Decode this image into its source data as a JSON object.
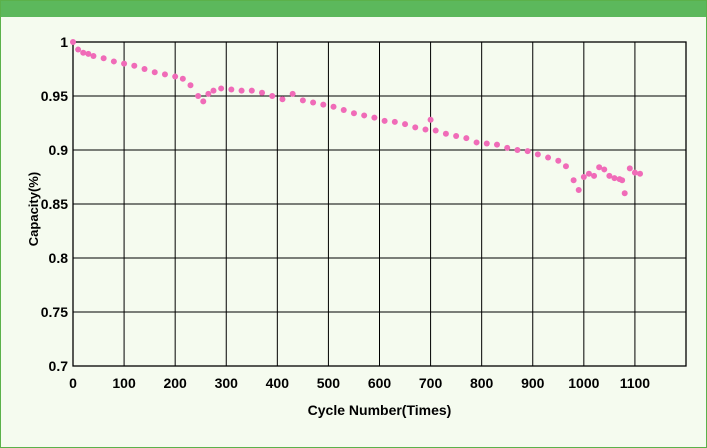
{
  "chart_data": {
    "type": "scatter",
    "title": "",
    "xlabel": "Cycle Number(Times)",
    "ylabel": "Capacity(%)",
    "xlim": [
      0,
      1200
    ],
    "ylim": [
      0.7,
      1.0
    ],
    "x_ticks": [
      "0",
      "100",
      "200",
      "300",
      "400",
      "500",
      "600",
      "700",
      "800",
      "900",
      "1000",
      "1100"
    ],
    "y_ticks": [
      "0.7",
      "0.75",
      "0.8",
      "0.85",
      "0.9",
      "0.95",
      "1"
    ],
    "grid": true,
    "legend": "none",
    "series": [
      {
        "color": "#f06bb8",
        "x": [
          0,
          10,
          20,
          30,
          40,
          60,
          80,
          100,
          120,
          140,
          160,
          180,
          200,
          215,
          230,
          245,
          255,
          265,
          275,
          290,
          310,
          330,
          350,
          370,
          390,
          410,
          430,
          450,
          470,
          490,
          510,
          530,
          550,
          570,
          590,
          610,
          630,
          650,
          670,
          690,
          700,
          710,
          730,
          750,
          770,
          790,
          810,
          830,
          850,
          870,
          890,
          910,
          930,
          950,
          965,
          980,
          990,
          1000,
          1010,
          1020,
          1030,
          1040,
          1050,
          1060,
          1070,
          1075,
          1080,
          1090,
          1100,
          1110
        ],
        "y": [
          1.0,
          0.993,
          0.99,
          0.989,
          0.987,
          0.985,
          0.982,
          0.98,
          0.978,
          0.975,
          0.972,
          0.97,
          0.968,
          0.966,
          0.96,
          0.95,
          0.945,
          0.952,
          0.955,
          0.957,
          0.956,
          0.955,
          0.955,
          0.953,
          0.95,
          0.947,
          0.952,
          0.946,
          0.944,
          0.942,
          0.94,
          0.937,
          0.934,
          0.932,
          0.93,
          0.927,
          0.926,
          0.924,
          0.921,
          0.919,
          0.928,
          0.918,
          0.915,
          0.913,
          0.911,
          0.907,
          0.906,
          0.905,
          0.902,
          0.9,
          0.899,
          0.896,
          0.893,
          0.89,
          0.885,
          0.872,
          0.863,
          0.875,
          0.878,
          0.876,
          0.884,
          0.882,
          0.876,
          0.874,
          0.873,
          0.872,
          0.86,
          0.883,
          0.879,
          0.878
        ]
      }
    ]
  }
}
